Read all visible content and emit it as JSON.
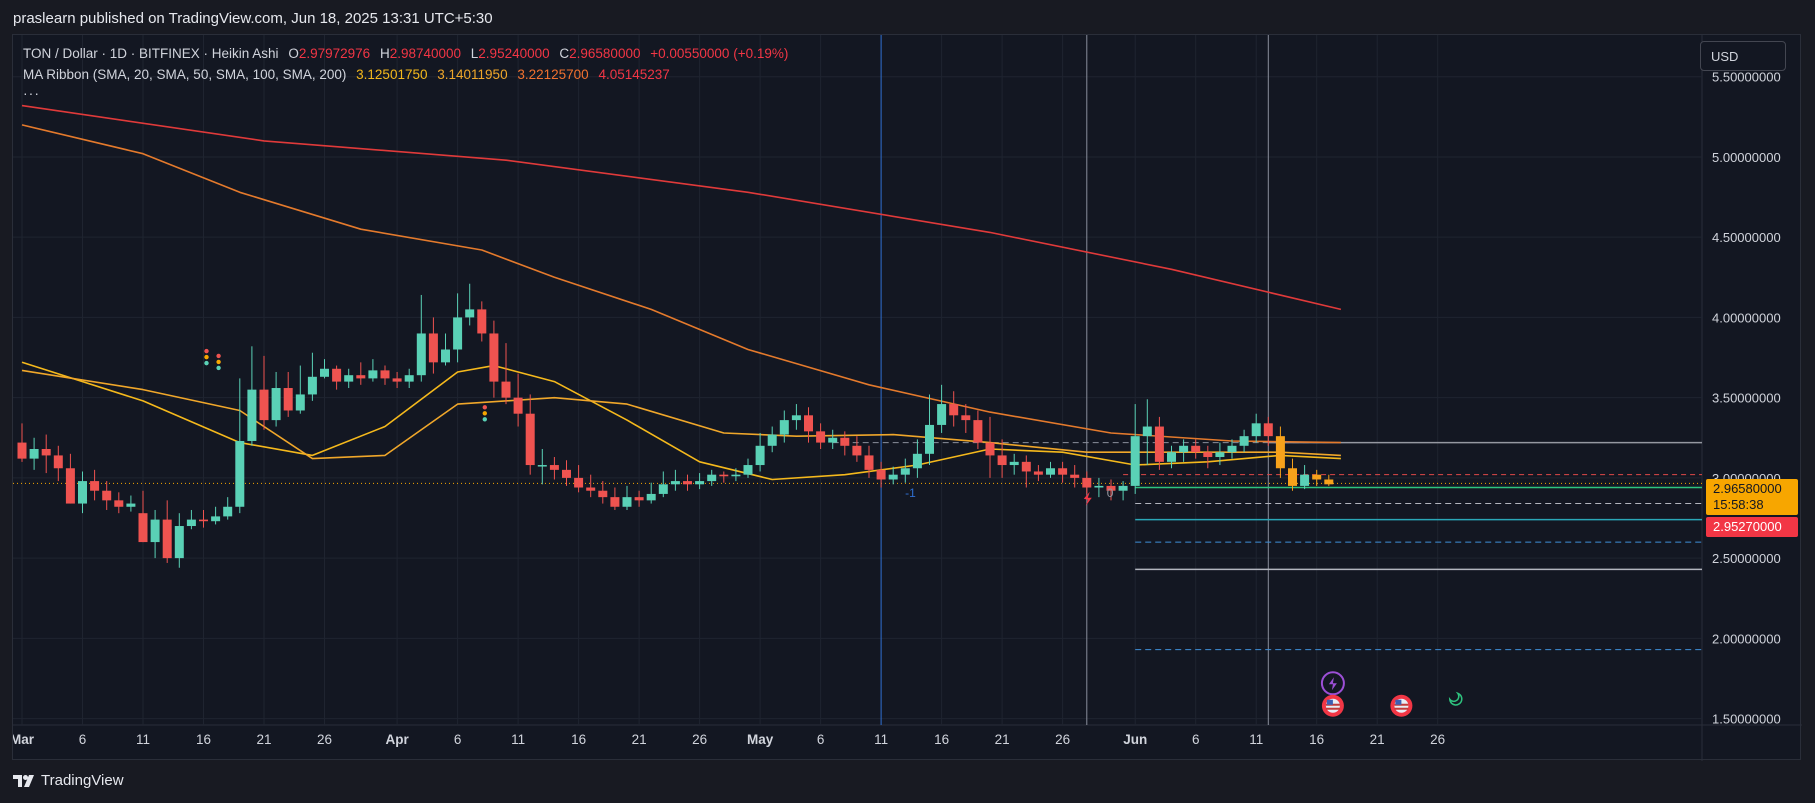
{
  "header": {
    "published": "praslearn published on TradingView.com, Jun 18, 2025 13:31 UTC+5:30"
  },
  "legend": {
    "symbol": "TON / Dollar · 1D · BITFINEX · Heikin Ashi",
    "o_label": "O",
    "o": "2.97972976",
    "h_label": "H",
    "h": "2.98740000",
    "l_label": "L",
    "l": "2.95240000",
    "c_label": "C",
    "c": "2.96580000",
    "change": "+0.00550000 (+0.19%)",
    "ma_title": "MA Ribbon (SMA, 20, SMA, 50, SMA, 100, SMA, 200)",
    "ma20": "3.12501750",
    "ma50": "3.14011950",
    "ma100": "3.22125700",
    "ma200": "4.05145237",
    "more": "···"
  },
  "currency": "USD",
  "price_tags": {
    "close": "2.96580000",
    "countdown": "15:58:38",
    "low": "2.95270000"
  },
  "markers": {
    "left": "-1",
    "right": "0"
  },
  "footer": {
    "brand": "TradingView"
  },
  "colors": {
    "bull": "#5ad1b6",
    "bear": "#ef5350",
    "bear_recent": "#f7a21b",
    "ma20": "#f5b91c",
    "ma50": "#f0a72a",
    "ma100": "#e47a2c",
    "ma200": "#e03a3a",
    "background": "#131722"
  },
  "chart_data": {
    "type": "candlestick",
    "title": "TON / Dollar · 1D · BITFINEX · Heikin Ashi",
    "x_ticks": [
      "Mar",
      "6",
      "11",
      "16",
      "21",
      "26",
      "Apr",
      "6",
      "11",
      "16",
      "21",
      "26",
      "May",
      "6",
      "11",
      "16",
      "21",
      "26",
      "Jun",
      "6",
      "11",
      "16",
      "21",
      "26"
    ],
    "y_ticks": [
      "5.50000000",
      "5.00000000",
      "4.50000000",
      "4.00000000",
      "3.50000000",
      "3.00000000",
      "2.50000000",
      "2.00000000",
      "1.50000000"
    ],
    "ylim": [
      1.46,
      5.76
    ],
    "candles": [
      [
        3.22,
        3.12,
        3.34,
        3.1
      ],
      [
        3.12,
        3.18,
        3.25,
        3.05
      ],
      [
        3.18,
        3.14,
        3.27,
        3.03
      ],
      [
        3.14,
        3.06,
        3.2,
        2.98
      ],
      [
        3.06,
        2.84,
        3.15,
        2.84
      ],
      [
        2.84,
        2.98,
        3.04,
        2.78
      ],
      [
        2.98,
        2.92,
        3.05,
        2.86
      ],
      [
        2.92,
        2.86,
        2.98,
        2.8
      ],
      [
        2.86,
        2.82,
        2.91,
        2.78
      ],
      [
        2.82,
        2.84,
        2.89,
        2.79
      ],
      [
        2.78,
        2.6,
        2.92,
        2.6
      ],
      [
        2.6,
        2.74,
        2.8,
        2.5
      ],
      [
        2.74,
        2.5,
        2.86,
        2.47
      ],
      [
        2.5,
        2.7,
        2.78,
        2.44
      ],
      [
        2.7,
        2.74,
        2.8,
        2.68
      ],
      [
        2.74,
        2.73,
        2.8,
        2.69
      ],
      [
        2.73,
        2.76,
        2.82,
        2.71
      ],
      [
        2.76,
        2.82,
        2.88,
        2.74
      ],
      [
        2.82,
        3.23,
        3.62,
        2.78
      ],
      [
        3.23,
        3.55,
        3.82,
        3.2
      ],
      [
        3.55,
        3.36,
        3.76,
        3.3
      ],
      [
        3.36,
        3.56,
        3.66,
        3.32
      ],
      [
        3.56,
        3.42,
        3.66,
        3.38
      ],
      [
        3.42,
        3.52,
        3.7,
        3.4
      ],
      [
        3.52,
        3.63,
        3.78,
        3.48
      ],
      [
        3.63,
        3.68,
        3.74,
        3.62
      ],
      [
        3.68,
        3.6,
        3.7,
        3.55
      ],
      [
        3.6,
        3.64,
        3.68,
        3.56
      ],
      [
        3.64,
        3.62,
        3.72,
        3.58
      ],
      [
        3.62,
        3.67,
        3.74,
        3.6
      ],
      [
        3.67,
        3.62,
        3.7,
        3.58
      ],
      [
        3.62,
        3.6,
        3.66,
        3.56
      ],
      [
        3.6,
        3.64,
        3.68,
        3.56
      ],
      [
        3.64,
        3.9,
        4.14,
        3.6
      ],
      [
        3.9,
        3.72,
        4.0,
        3.65
      ],
      [
        3.72,
        3.8,
        3.9,
        3.7
      ],
      [
        3.8,
        4.0,
        4.15,
        3.72
      ],
      [
        4.0,
        4.05,
        4.21,
        3.95
      ],
      [
        4.05,
        3.9,
        4.1,
        3.85
      ],
      [
        3.9,
        3.6,
        3.98,
        3.5
      ],
      [
        3.6,
        3.5,
        3.84,
        3.46
      ],
      [
        3.5,
        3.4,
        3.65,
        3.32
      ],
      [
        3.4,
        3.08,
        3.52,
        3.02
      ],
      [
        3.08,
        3.08,
        3.18,
        2.96
      ],
      [
        3.08,
        3.05,
        3.13,
        2.99
      ],
      [
        3.05,
        3.0,
        3.11,
        2.95
      ],
      [
        3.0,
        2.94,
        3.08,
        2.91
      ],
      [
        2.94,
        2.92,
        3.02,
        2.88
      ],
      [
        2.92,
        2.88,
        2.98,
        2.84
      ],
      [
        2.88,
        2.82,
        2.94,
        2.8
      ],
      [
        2.82,
        2.88,
        2.95,
        2.8
      ],
      [
        2.88,
        2.86,
        2.92,
        2.82
      ],
      [
        2.86,
        2.9,
        2.97,
        2.84
      ],
      [
        2.9,
        2.96,
        3.04,
        2.88
      ],
      [
        2.96,
        2.98,
        3.05,
        2.92
      ],
      [
        2.98,
        2.96,
        3.02,
        2.92
      ],
      [
        2.96,
        2.98,
        3.03,
        2.93
      ],
      [
        2.98,
        3.02,
        3.05,
        2.95
      ],
      [
        3.02,
        3.01,
        3.04,
        2.97
      ],
      [
        3.01,
        3.02,
        3.06,
        2.98
      ],
      [
        3.02,
        3.08,
        3.12,
        3.0
      ],
      [
        3.08,
        3.2,
        3.28,
        3.04
      ],
      [
        3.2,
        3.27,
        3.32,
        3.16
      ],
      [
        3.27,
        3.36,
        3.42,
        3.22
      ],
      [
        3.36,
        3.39,
        3.46,
        3.3
      ],
      [
        3.39,
        3.29,
        3.44,
        3.22
      ],
      [
        3.29,
        3.22,
        3.34,
        3.18
      ],
      [
        3.22,
        3.25,
        3.3,
        3.18
      ],
      [
        3.25,
        3.2,
        3.29,
        3.14
      ],
      [
        3.2,
        3.14,
        3.26,
        3.1
      ],
      [
        3.14,
        3.05,
        3.2,
        3.0
      ],
      [
        3.05,
        2.99,
        3.1,
        2.94
      ],
      [
        2.99,
        3.02,
        3.07,
        2.96
      ],
      [
        3.02,
        3.06,
        3.12,
        2.97
      ],
      [
        3.06,
        3.15,
        3.24,
        3.0
      ],
      [
        3.15,
        3.33,
        3.52,
        3.08
      ],
      [
        3.33,
        3.46,
        3.58,
        3.28
      ],
      [
        3.46,
        3.39,
        3.54,
        3.32
      ],
      [
        3.39,
        3.36,
        3.46,
        3.28
      ],
      [
        3.36,
        3.22,
        3.42,
        3.18
      ],
      [
        3.22,
        3.14,
        3.38,
        3.0
      ],
      [
        3.14,
        3.08,
        3.24,
        3.0
      ],
      [
        3.08,
        3.1,
        3.15,
        3.02
      ],
      [
        3.1,
        3.04,
        3.14,
        2.94
      ],
      [
        3.04,
        3.02,
        3.08,
        2.98
      ],
      [
        3.02,
        3.06,
        3.1,
        3.0
      ],
      [
        3.06,
        3.02,
        3.1,
        2.97
      ],
      [
        3.02,
        3.0,
        3.08,
        2.94
      ],
      [
        3.0,
        2.94,
        3.04,
        2.9
      ],
      [
        2.94,
        2.95,
        3.0,
        2.88
      ],
      [
        2.95,
        2.92,
        2.99,
        2.86
      ],
      [
        2.92,
        2.95,
        2.98,
        2.86
      ],
      [
        2.95,
        3.26,
        3.46,
        2.9
      ],
      [
        3.26,
        3.32,
        3.49,
        3.08
      ],
      [
        3.32,
        3.1,
        3.38,
        3.05
      ],
      [
        3.1,
        3.16,
        3.2,
        3.06
      ],
      [
        3.16,
        3.2,
        3.24,
        3.1
      ],
      [
        3.2,
        3.16,
        3.24,
        3.12
      ],
      [
        3.16,
        3.13,
        3.2,
        3.06
      ],
      [
        3.13,
        3.16,
        3.22,
        3.08
      ],
      [
        3.16,
        3.2,
        3.24,
        3.12
      ],
      [
        3.2,
        3.26,
        3.3,
        3.16
      ],
      [
        3.26,
        3.34,
        3.4,
        3.22
      ],
      [
        3.34,
        3.26,
        3.38,
        3.2
      ],
      [
        3.26,
        3.06,
        3.32,
        3.0
      ],
      [
        3.06,
        2.95,
        3.12,
        2.92
      ],
      [
        2.95,
        3.02,
        3.08,
        2.93
      ],
      [
        3.02,
        2.99,
        3.05,
        2.95
      ],
      [
        2.99,
        2.96,
        3.02,
        2.95
      ]
    ],
    "series": [
      {
        "name": "SMA 20",
        "color": "#f5b91c",
        "values": [
          [
            0,
            3.72
          ],
          [
            10,
            3.48
          ],
          [
            18,
            3.22
          ],
          [
            24,
            3.14
          ],
          [
            30,
            3.32
          ],
          [
            36,
            3.66
          ],
          [
            39,
            3.7
          ],
          [
            44,
            3.6
          ],
          [
            50,
            3.36
          ],
          [
            56,
            3.1
          ],
          [
            62,
            2.99
          ],
          [
            68,
            3.02
          ],
          [
            74,
            3.08
          ],
          [
            80,
            3.18
          ],
          [
            86,
            3.16
          ],
          [
            92,
            3.08
          ],
          [
            98,
            3.1
          ],
          [
            104,
            3.14
          ],
          [
            109,
            3.12
          ]
        ]
      },
      {
        "name": "SMA 50",
        "color": "#f0a72a",
        "values": [
          [
            0,
            3.67
          ],
          [
            10,
            3.55
          ],
          [
            18,
            3.42
          ],
          [
            24,
            3.12
          ],
          [
            30,
            3.14
          ],
          [
            36,
            3.46
          ],
          [
            44,
            3.5
          ],
          [
            50,
            3.46
          ],
          [
            58,
            3.28
          ],
          [
            64,
            3.26
          ],
          [
            72,
            3.27
          ],
          [
            80,
            3.22
          ],
          [
            88,
            3.16
          ],
          [
            96,
            3.16
          ],
          [
            104,
            3.16
          ],
          [
            109,
            3.14
          ]
        ]
      },
      {
        "name": "SMA 100",
        "color": "#e47a2c",
        "values": [
          [
            0,
            5.2
          ],
          [
            10,
            5.02
          ],
          [
            18,
            4.78
          ],
          [
            28,
            4.55
          ],
          [
            38,
            4.42
          ],
          [
            44,
            4.25
          ],
          [
            52,
            4.05
          ],
          [
            60,
            3.8
          ],
          [
            70,
            3.58
          ],
          [
            80,
            3.41
          ],
          [
            90,
            3.28
          ],
          [
            100,
            3.23
          ],
          [
            109,
            3.22
          ]
        ]
      },
      {
        "name": "SMA 200",
        "color": "#e03a3a",
        "values": [
          [
            0,
            5.32
          ],
          [
            20,
            5.1
          ],
          [
            40,
            4.98
          ],
          [
            60,
            4.78
          ],
          [
            80,
            4.53
          ],
          [
            95,
            4.3
          ],
          [
            109,
            4.05
          ]
        ]
      }
    ],
    "levels": [
      3.22,
      3.02,
      2.94,
      2.84,
      2.74,
      2.6,
      2.43,
      1.93
    ],
    "vlines": [
      71,
      88,
      103
    ],
    "grid": true,
    "legend_position": "top-left"
  }
}
